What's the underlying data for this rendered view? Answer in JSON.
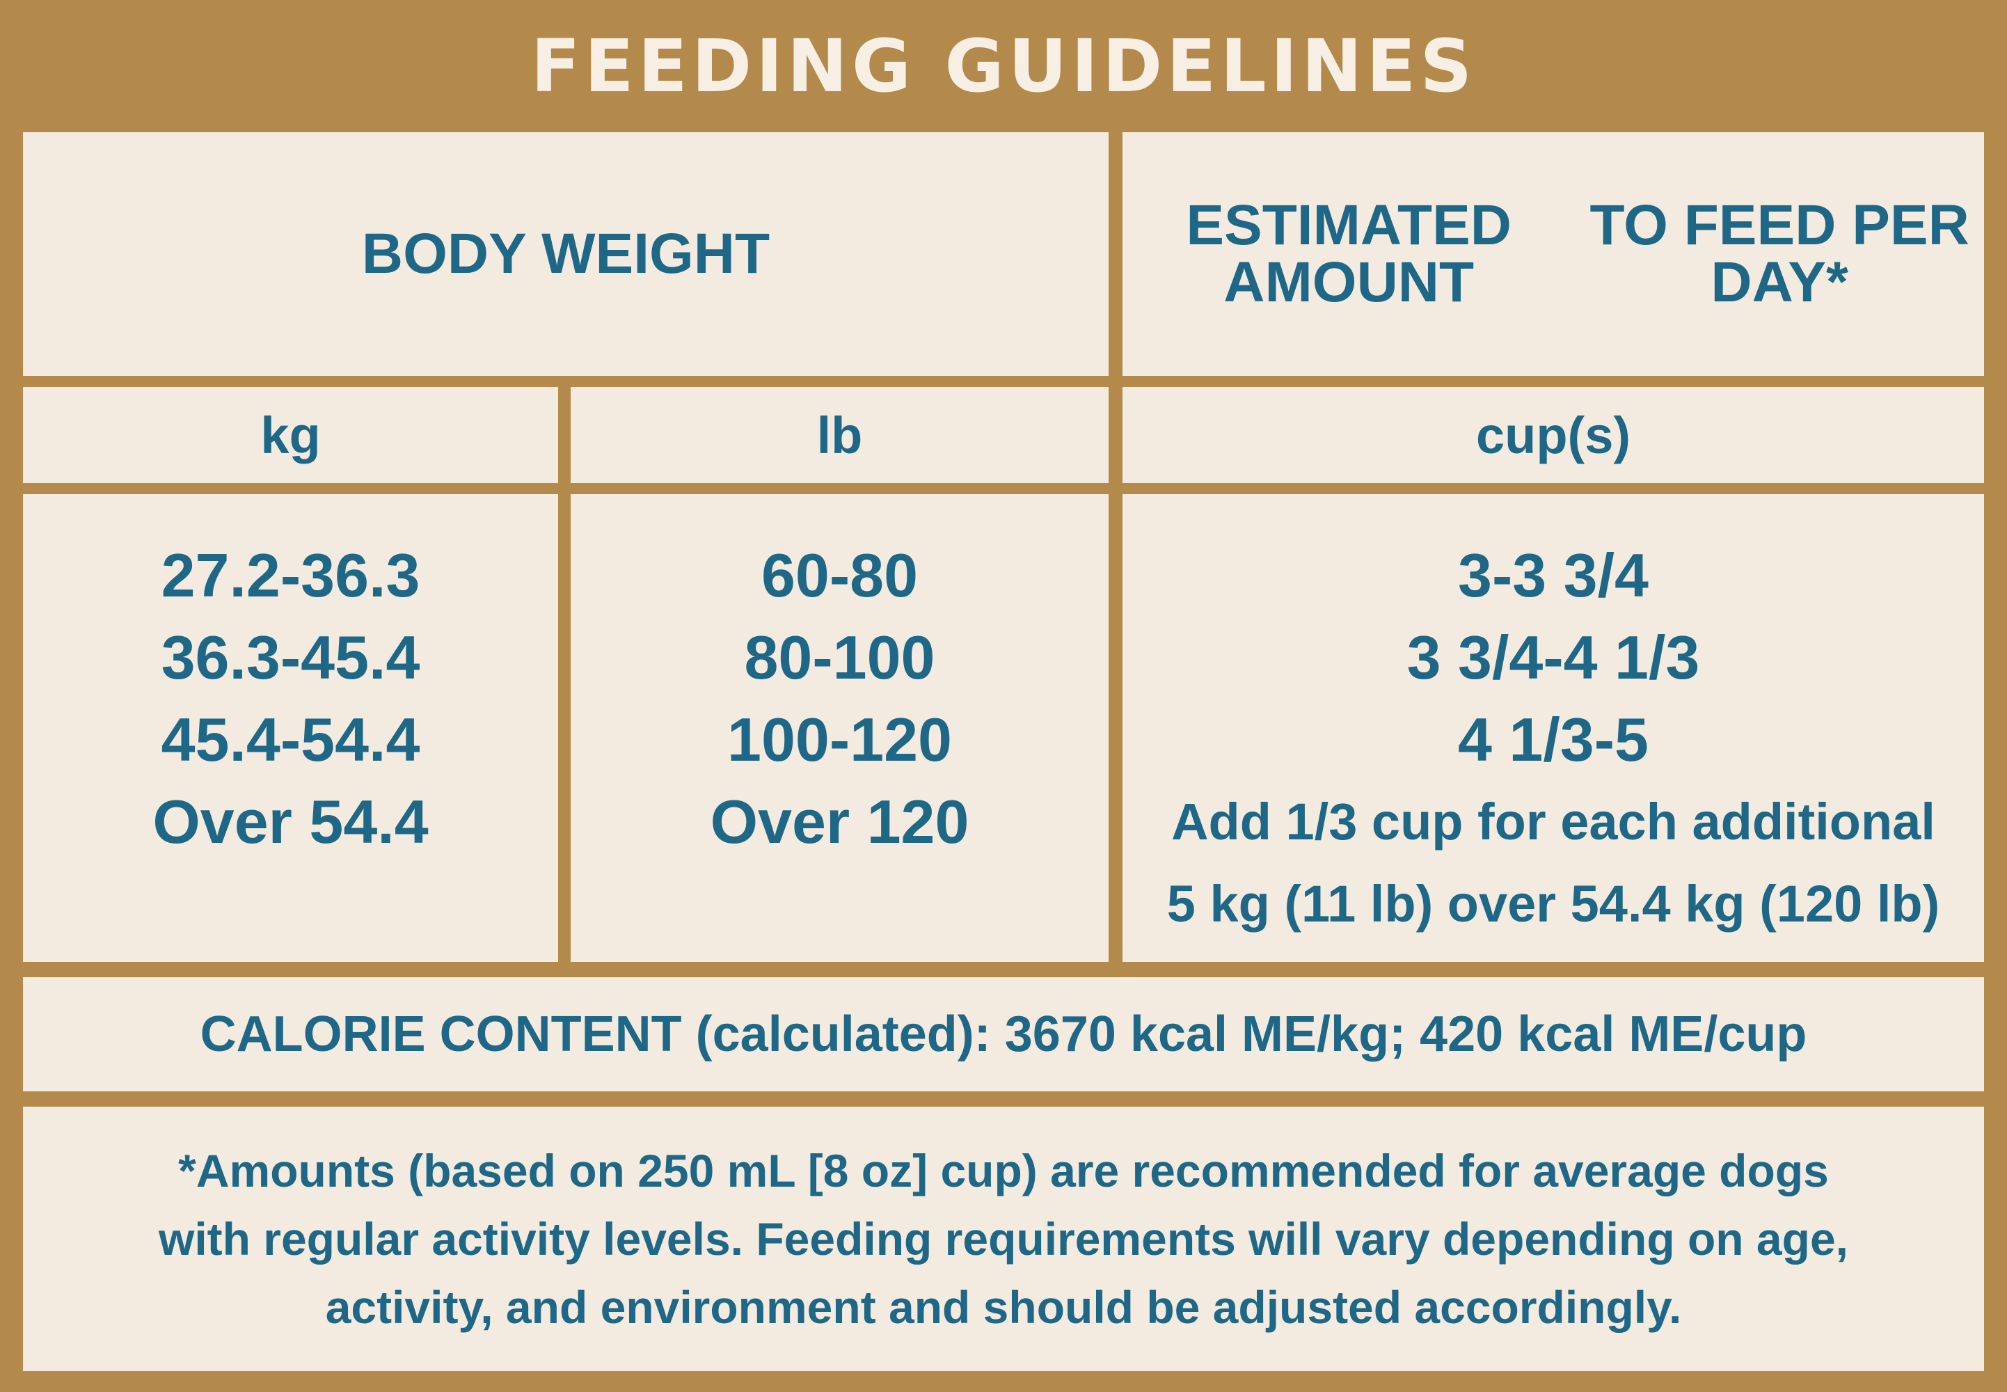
{
  "title": "FEEDING GUIDELINES",
  "headers": {
    "body_weight": "BODY WEIGHT",
    "estimated_amount_line1": "ESTIMATED AMOUNT",
    "estimated_amount_line2": "TO FEED PER DAY*"
  },
  "units": {
    "kg": "kg",
    "lb": "lb",
    "cups": "cup(s)"
  },
  "rows": {
    "kg": [
      "27.2-36.3",
      "36.3-45.4",
      "45.4-54.4",
      "Over 54.4"
    ],
    "lb": [
      "60-80",
      "80-100",
      "100-120",
      "Over 120"
    ],
    "cups": [
      "3-3 3/4",
      "3 3/4-4 1/3",
      "4 1/3-5",
      "Add 1/3 cup for each additional",
      "5 kg (11 lb) over 54.4 kg (120 lb)"
    ]
  },
  "calorie_content": "CALORIE CONTENT (calculated): 3670 kcal ME/kg; 420 kcal ME/cup",
  "footnote": [
    "*Amounts (based on 250 mL [8 oz] cup) are recommended for average dogs",
    "with regular activity levels. Feeding requirements will vary depending on age,",
    "activity, and environment and should be adjusted accordingly."
  ]
}
